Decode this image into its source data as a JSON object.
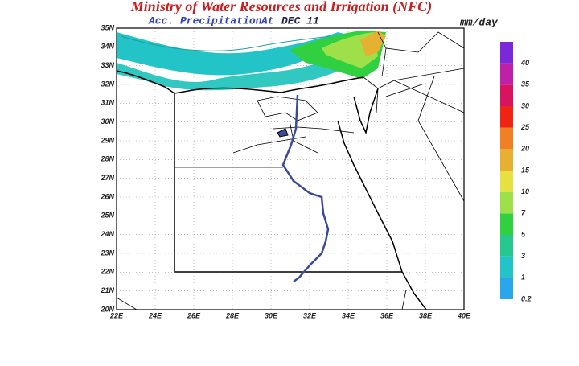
{
  "header": {
    "title": "Ministry of Water Resources and Irrigation (NFC)",
    "subtitle": "Acc. Precipitation",
    "at": "At",
    "date": "DEC 11",
    "unit": "mm/day"
  },
  "map": {
    "lat_labels": [
      "20N",
      "21N",
      "22N",
      "23N",
      "24N",
      "25N",
      "26N",
      "27N",
      "28N",
      "29N",
      "30N",
      "31N",
      "32N",
      "33N",
      "34N",
      "35N"
    ],
    "lon_labels": [
      "22E",
      "24E",
      "26E",
      "28E",
      "30E",
      "32E",
      "34E",
      "36E",
      "38E",
      "40E"
    ],
    "legend": {
      "labels": [
        0.2,
        1,
        3,
        5,
        7,
        10,
        15,
        20,
        25,
        30,
        35,
        40
      ],
      "colors": [
        "#2aa6ea",
        "#22c4c8",
        "#26c890",
        "#30d040",
        "#9ee04a",
        "#e6e040",
        "#e6b030",
        "#f08024",
        "#f02414",
        "#d81460",
        "#c020a8",
        "#7a28d8"
      ]
    }
  }
}
